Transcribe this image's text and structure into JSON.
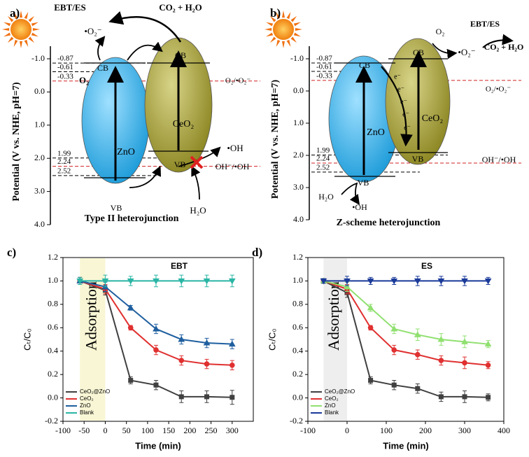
{
  "diagram_a": {
    "panel_label": "a)",
    "axis_label": "Potential (V vs. NHE, pH=7)",
    "ylim": [
      -1.0,
      4.0
    ],
    "yticks": [
      {
        "value": -1,
        "label": "-1.0"
      },
      {
        "value": 0,
        "label": "0.0"
      },
      {
        "value": 1,
        "label": "1.0"
      },
      {
        "value": 2,
        "label": "2.0"
      },
      {
        "value": 3,
        "label": "3.0"
      },
      {
        "value": 4,
        "label": "4.0"
      }
    ],
    "levels": [
      -0.87,
      -0.61,
      -0.33,
      1.99,
      2.24,
      2.52
    ],
    "labels": [
      "EBT/ES",
      "CO₂ + H₂O",
      "•O₂⁻",
      "O₂",
      "O₂/•O₂⁻",
      "ZnO",
      "CeO₂",
      "CB",
      "CB",
      "VB",
      "VB",
      "OH⁻/•OH",
      "•OH",
      "H₂O",
      "Type II heterojunction"
    ]
  },
  "diagram_b": {
    "panel_label": "b)",
    "axis_label": "Potential (V vs. NHE, pH=7)",
    "ylim": [
      -1.0,
      4.0
    ],
    "yticks": [
      {
        "value": -1,
        "label": "-1.0"
      },
      {
        "value": 0,
        "label": "0.0"
      },
      {
        "value": 1,
        "label": "1.0"
      },
      {
        "value": 2,
        "label": "2.0"
      },
      {
        "value": 3,
        "label": "3.0"
      },
      {
        "value": 4,
        "label": "4.0"
      }
    ],
    "levels": [
      -0.87,
      -0.61,
      -0.33,
      1.99,
      2.24,
      2.52
    ],
    "labels": [
      "O₂",
      "•O₂⁻",
      "EBT/ES",
      "CO₂ + H₂O",
      "O₂/•O₂⁻",
      "ZnO",
      "CeO₂",
      "CB",
      "CB",
      "VB",
      "VB",
      "e⁻",
      "e⁻",
      "e⁻",
      "e⁻",
      "e⁻",
      "OH⁻/•OH",
      "H₂O",
      "•OH",
      "Z-scheme heterojunction"
    ]
  },
  "chart_data": [
    {
      "type": "line",
      "panel_label": "c)",
      "title": "EBT",
      "xlabel": "Time (min)",
      "ylabel": "Cₜ/C₀",
      "x": [
        -60,
        0,
        60,
        120,
        180,
        240,
        300
      ],
      "xlim": [
        -100,
        350
      ],
      "xticks": [
        -100,
        -50,
        0,
        50,
        100,
        150,
        200,
        250,
        300
      ],
      "ylim": [
        -0.2,
        1.2
      ],
      "yticks": [
        -0.2,
        {
          "value": 0,
          "label": "0.0"
        },
        0.2,
        0.4,
        0.6,
        0.8,
        {
          "value": 1,
          "label": "1.0"
        },
        1.2
      ],
      "annotation": "Adsorption",
      "shaded_xrange": [
        -60,
        0
      ],
      "shade_color": "#f8f6d4",
      "series": [
        {
          "name": "CeO₂@ZnO",
          "color": "#404040",
          "marker": "square",
          "values": [
            1.0,
            0.92,
            0.15,
            0.11,
            0.01,
            0.01,
            0.005
          ],
          "errors": [
            0.03,
            0.04,
            0.03,
            0.04,
            0.05,
            0.05,
            0.06
          ]
        },
        {
          "name": "CeO₂",
          "color": "#e03030",
          "marker": "circle",
          "values": [
            1.0,
            0.93,
            0.6,
            0.41,
            0.32,
            0.29,
            0.28
          ],
          "errors": [
            0.03,
            0.04,
            0.02,
            0.04,
            0.04,
            0.04,
            0.04
          ]
        },
        {
          "name": "ZnO",
          "color": "#1f5f9f",
          "marker": "triangle-up",
          "values": [
            1.0,
            0.95,
            0.77,
            0.59,
            0.5,
            0.47,
            0.46
          ],
          "errors": [
            0.03,
            0.04,
            0.02,
            0.04,
            0.04,
            0.04,
            0.04
          ]
        },
        {
          "name": "Blank",
          "color": "#2ab5a5",
          "marker": "triangle-down",
          "values": [
            1.0,
            1.0,
            1.0,
            1.0,
            1.0,
            1.0,
            1.0
          ],
          "errors": [
            0.03,
            0.05,
            0.04,
            0.05,
            0.05,
            0.05,
            0.05
          ]
        }
      ]
    },
    {
      "type": "line",
      "panel_label": "d)",
      "title": "ES",
      "xlabel": "Time (min)",
      "ylabel": "Cₜ/C₀",
      "x": [
        -60,
        0,
        60,
        120,
        180,
        240,
        300,
        360
      ],
      "xlim": [
        -100,
        400
      ],
      "xticks": [
        -100,
        0,
        100,
        200,
        300,
        400
      ],
      "ylim": [
        -0.2,
        1.2
      ],
      "yticks": [
        -0.2,
        {
          "value": 0,
          "label": "0.0"
        },
        0.2,
        0.4,
        0.6,
        0.8,
        {
          "value": 1,
          "label": "1.0"
        },
        1.2
      ],
      "annotation": "Adsorption",
      "shaded_xrange": [
        -60,
        0
      ],
      "shade_color": "#eeeeee",
      "series": [
        {
          "name": "CeO₂@ZnO",
          "color": "#404040",
          "marker": "square",
          "values": [
            1.0,
            0.9,
            0.15,
            0.11,
            0.08,
            0.01,
            0.01,
            0.005
          ],
          "errors": [
            0.02,
            0.04,
            0.03,
            0.04,
            0.04,
            0.04,
            0.05,
            0.03
          ]
        },
        {
          "name": "CeO₂",
          "color": "#e03030",
          "marker": "circle",
          "values": [
            1.0,
            0.93,
            0.6,
            0.41,
            0.37,
            0.32,
            0.3,
            0.28
          ],
          "errors": [
            0.02,
            0.04,
            0.02,
            0.04,
            0.04,
            0.04,
            0.05,
            0.03
          ]
        },
        {
          "name": "ZnO",
          "color": "#90e070",
          "marker": "triangle-up",
          "values": [
            1.0,
            0.95,
            0.77,
            0.59,
            0.54,
            0.5,
            0.48,
            0.46
          ],
          "errors": [
            0.02,
            0.04,
            0.03,
            0.04,
            0.05,
            0.05,
            0.05,
            0.03
          ]
        },
        {
          "name": "Blank",
          "color": "#1a3a9a",
          "marker": "triangle-down",
          "values": [
            1.0,
            1.0,
            1.0,
            1.0,
            1.0,
            1.0,
            1.0,
            1.0
          ],
          "errors": [
            0.02,
            0.04,
            0.03,
            0.03,
            0.04,
            0.04,
            0.04,
            0.03
          ]
        }
      ]
    }
  ]
}
